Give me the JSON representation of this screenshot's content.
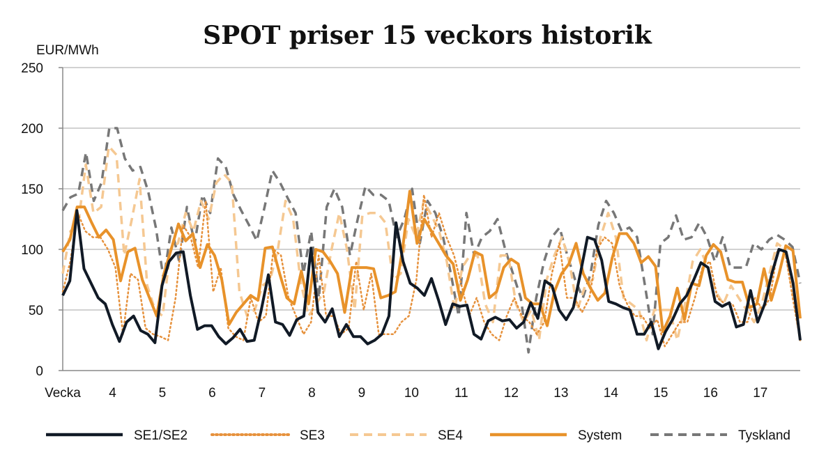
{
  "chart_data": {
    "type": "line",
    "title": "SPOT priser 15 veckors historik",
    "ylabel": "EUR/MWh",
    "xlabel": "",
    "ylim": [
      0,
      250
    ],
    "yticks": [
      0,
      50,
      100,
      150,
      200,
      250
    ],
    "grid": true,
    "legend_position": "bottom",
    "x_tick_labels": [
      "Vecka",
      "4",
      "5",
      "6",
      "7",
      "8",
      "9",
      "10",
      "11",
      "12",
      "13",
      "14",
      "15",
      "16",
      "17"
    ],
    "x_tick_positions": [
      0,
      10,
      20,
      30,
      40,
      50,
      60,
      70,
      80,
      90,
      100,
      110,
      120,
      130,
      140
    ],
    "x_range": [
      0,
      148
    ],
    "series": [
      {
        "name": "Tyskland",
        "color": "#777777",
        "style": "dashed",
        "values": [
          132,
          143,
          146,
          180,
          140,
          155,
          200,
          200,
          175,
          165,
          168,
          148,
          118,
          75,
          118,
          90,
          135,
          105,
          145,
          130,
          175,
          168,
          145,
          132,
          120,
          107,
          135,
          165,
          155,
          142,
          130,
          80,
          115,
          60,
          135,
          150,
          135,
          95,
          125,
          152,
          145,
          145,
          140,
          110,
          125,
          150,
          105,
          140,
          130,
          110,
          80,
          45,
          130,
          95,
          110,
          115,
          125,
          100,
          80,
          60,
          15,
          60,
          90,
          110,
          118,
          95,
          75,
          60,
          80,
          120,
          140,
          130,
          115,
          118,
          110,
          70,
          30,
          105,
          110,
          128,
          108,
          110,
          122,
          110,
          90,
          110,
          85,
          85,
          85,
          105,
          100,
          108,
          112,
          108,
          102,
          72
        ]
      },
      {
        "name": "SE4",
        "color": "#f5c892",
        "style": "dashed",
        "values": [
          80,
          115,
          120,
          170,
          130,
          135,
          185,
          178,
          95,
          125,
          158,
          70,
          50,
          45,
          100,
          105,
          130,
          115,
          140,
          125,
          155,
          162,
          155,
          65,
          45,
          50,
          70,
          75,
          100,
          140,
          125,
          72,
          45,
          55,
          65,
          100,
          130,
          100,
          50,
          128,
          130,
          130,
          122,
          75,
          80,
          125,
          110,
          140,
          128,
          115,
          90,
          50,
          85,
          95,
          95,
          55,
          40,
          95,
          95,
          55,
          40,
          50,
          25,
          75,
          95,
          110,
          88,
          50,
          70,
          75,
          110,
          130,
          110,
          60,
          55,
          50,
          25,
          50,
          50,
          50,
          25,
          55,
          90,
          100,
          85,
          65,
          55,
          70,
          60,
          50,
          40,
          55,
          80,
          105,
          100,
          65,
          25
        ]
      },
      {
        "name": "SE3",
        "color": "#e6913c",
        "style": "dotted",
        "values": [
          65,
          90,
          130,
          115,
          110,
          110,
          100,
          85,
          30,
          80,
          75,
          35,
          30,
          28,
          25,
          60,
          120,
          110,
          85,
          140,
          65,
          85,
          35,
          28,
          25,
          60,
          40,
          45,
          100,
          95,
          60,
          45,
          30,
          40,
          95,
          45,
          45,
          30,
          35,
          90,
          50,
          80,
          30,
          30,
          30,
          40,
          45,
          75,
          145,
          110,
          130,
          110,
          95,
          70,
          45,
          60,
          40,
          30,
          25,
          45,
          60,
          45,
          40,
          30,
          40,
          80,
          105,
          60,
          60,
          48,
          60,
          100,
          110,
          105,
          70,
          55,
          45,
          45,
          35,
          42,
          20,
          30,
          40,
          40,
          60,
          85,
          90,
          60,
          55,
          55,
          40,
          40,
          60,
          50,
          60,
          100,
          98,
          60,
          25
        ]
      },
      {
        "name": "System",
        "color": "#e8922a",
        "style": "solid",
        "values": [
          98,
          108,
          135,
          135,
          122,
          110,
          116,
          108,
          74,
          98,
          101,
          75,
          60,
          45,
          80,
          100,
          121,
          107,
          113,
          85,
          104,
          95,
          75,
          38,
          48,
          55,
          62,
          58,
          101,
          102,
          80,
          60,
          55,
          82,
          55,
          100,
          98,
          90,
          80,
          48,
          85,
          85,
          85,
          84,
          60,
          62,
          65,
          100,
          148,
          105,
          125,
          115,
          105,
          95,
          88,
          58,
          75,
          98,
          95,
          60,
          65,
          85,
          92,
          88,
          60,
          55,
          55,
          37,
          65,
          80,
          88,
          105,
          80,
          68,
          58,
          64,
          93,
          113,
          113,
          105,
          89,
          94,
          86,
          32,
          45,
          68,
          42,
          72,
          70,
          95,
          104,
          98,
          75,
          73,
          73,
          52,
          55,
          84,
          58,
          78,
          103,
          99,
          43
        ]
      },
      {
        "name": "SE1/SE2",
        "color": "#111a26",
        "style": "solid",
        "values": [
          62,
          74,
          132,
          84,
          72,
          60,
          55,
          38,
          24,
          40,
          45,
          33,
          30,
          23,
          70,
          90,
          97,
          98,
          62,
          34,
          37,
          37,
          28,
          22,
          27,
          34,
          24,
          25,
          50,
          79,
          40,
          38,
          29,
          42,
          45,
          101,
          48,
          40,
          51,
          28,
          38,
          28,
          28,
          22,
          25,
          30,
          45,
          122,
          90,
          72,
          68,
          62,
          76,
          58,
          38,
          55,
          53,
          54,
          30,
          26,
          41,
          44,
          41,
          42,
          35,
          40,
          56,
          43,
          74,
          70,
          50,
          42,
          52,
          80,
          110,
          108,
          91,
          57,
          55,
          52,
          50,
          30,
          30,
          40,
          18,
          32,
          42,
          55,
          62,
          75,
          89,
          85,
          57,
          53,
          56,
          36,
          38,
          66,
          40,
          55,
          80,
          100,
          98,
          72,
          25
        ]
      }
    ]
  }
}
